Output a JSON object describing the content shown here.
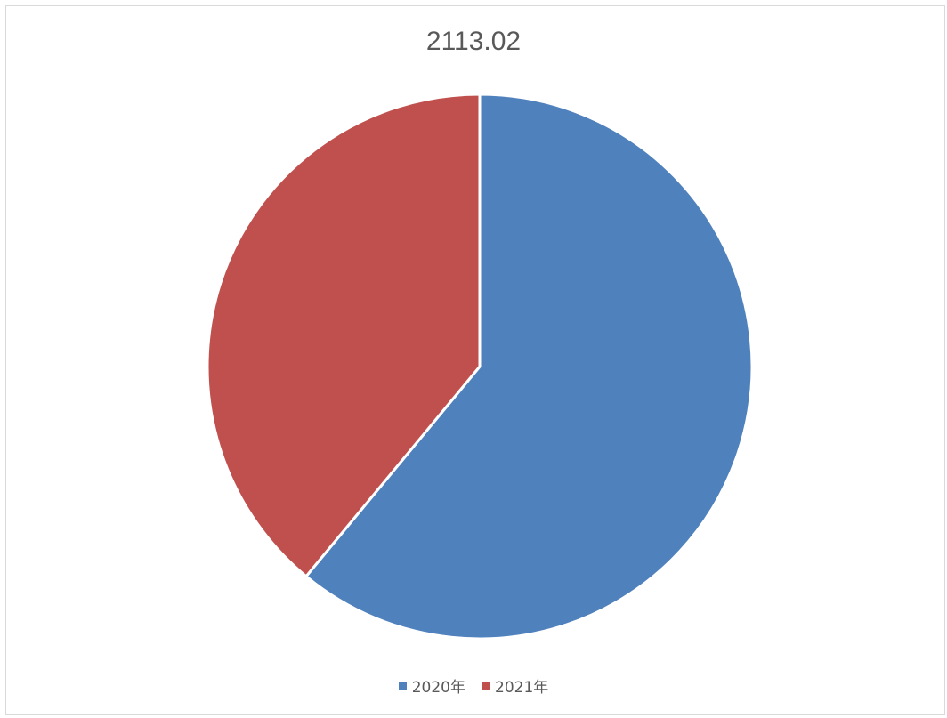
{
  "chart_data": {
    "type": "pie",
    "title": "2113.02",
    "series": [
      {
        "name": "2020年",
        "value": 61,
        "color": "#4f81bd"
      },
      {
        "name": "2021年",
        "value": 39,
        "color": "#c0504d"
      }
    ],
    "legend": "bottom",
    "start_angle": "12 o'clock, clockwise"
  }
}
